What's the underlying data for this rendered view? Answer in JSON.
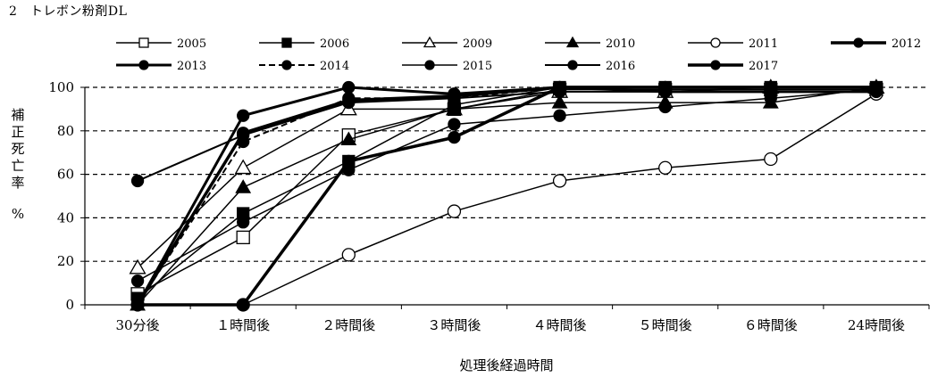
{
  "page_title": "2　トレボン粉剤DL",
  "chart_data": {
    "type": "line",
    "title": "2　トレボン粉剤DL",
    "xlabel": "処理後経過時間",
    "ylabel_chars": [
      "補",
      "正",
      "死",
      "亡",
      "率"
    ],
    "ylabel_unit": "%",
    "categories": [
      "30分後",
      "１時間後",
      "２時間後",
      "３時間後",
      "４時間後",
      "５時間後",
      "６時間後",
      "24時間後"
    ],
    "ylim": [
      0,
      100
    ],
    "yticks": [
      0,
      20,
      40,
      60,
      80,
      100
    ],
    "grid": "horizontal dashed at 20, 40, 60, 80, 100",
    "legend_position": "top",
    "series": [
      {
        "name": "2005",
        "marker": "square",
        "fill": "#ffffff",
        "dash": false,
        "width": 1.5,
        "values": [
          5,
          31,
          78,
          90,
          99,
          99,
          99,
          99
        ]
      },
      {
        "name": "2006",
        "marker": "square",
        "fill": "#000000",
        "dash": false,
        "width": 1.5,
        "values": [
          3,
          42,
          66,
          92,
          100,
          100,
          100,
          100
        ]
      },
      {
        "name": "2009",
        "marker": "triangle",
        "fill": "#ffffff",
        "dash": false,
        "width": 1.5,
        "values": [
          17,
          63,
          90,
          90,
          98,
          98,
          100,
          100
        ]
      },
      {
        "name": "2010",
        "marker": "triangle",
        "fill": "#000000",
        "dash": false,
        "width": 1.5,
        "values": [
          0,
          54,
          76,
          90,
          93,
          93,
          93,
          100
        ]
      },
      {
        "name": "2011",
        "marker": "circle",
        "fill": "#ffffff",
        "dash": false,
        "width": 1.5,
        "values": [
          0,
          0,
          23,
          43,
          57,
          63,
          67,
          97
        ]
      },
      {
        "name": "2012",
        "marker": "circle",
        "fill": "#000000",
        "dash": false,
        "width": 3.5,
        "values": [
          0,
          0,
          66,
          77,
          100,
          100,
          100,
          100
        ]
      },
      {
        "name": "2013",
        "marker": "circle",
        "fill": "#000000",
        "dash": false,
        "width": 3,
        "values": [
          0,
          87,
          100,
          97,
          100,
          98,
          98,
          98
        ]
      },
      {
        "name": "2014",
        "marker": "circle",
        "fill": "#000000",
        "dash": true,
        "width": 2,
        "values": [
          0,
          75,
          95,
          95,
          100,
          100,
          100,
          100
        ]
      },
      {
        "name": "2015",
        "marker": "circle",
        "fill": "#000000",
        "dash": false,
        "width": 1.5,
        "values": [
          11,
          38,
          62,
          83,
          87,
          91,
          95,
          99
        ]
      },
      {
        "name": "2016",
        "marker": "circle",
        "fill": "#000000",
        "dash": false,
        "width": 2,
        "values": [
          57,
          78,
          93,
          95,
          98,
          98,
          98,
          98
        ]
      },
      {
        "name": "2017",
        "marker": "circle",
        "fill": "#000000",
        "dash": false,
        "width": 3.5,
        "values": [
          0,
          79,
          94,
          96,
          100,
          100,
          100,
          100
        ]
      }
    ]
  }
}
